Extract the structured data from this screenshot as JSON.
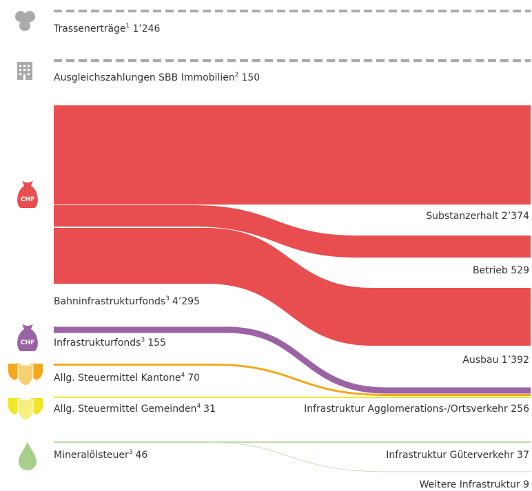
{
  "sources": [
    {
      "name": "Trassenerträge",
      "note": "1",
      "value": "1’246"
    },
    {
      "name": "Ausgleichszahlungen SBB Immobilien",
      "note": "2",
      "value": "150"
    },
    {
      "name": "Bahninfrastrukturfonds",
      "note": "3",
      "value": "4’295"
    },
    {
      "name": "Infrastrukturfonds",
      "note": "3",
      "value": "155"
    },
    {
      "name": "Allg. Steuermittel Kantone",
      "note": "4",
      "value": "70"
    },
    {
      "name": "Allg. Steuermittel Gemeinden",
      "note": "4",
      "value": "31"
    },
    {
      "name": "Mineralölsteuer",
      "note": "3",
      "value": "46"
    }
  ],
  "targets": [
    {
      "name": "Substanzerhalt",
      "value": "2’374"
    },
    {
      "name": "Betrieb",
      "value": "529"
    },
    {
      "name": "Ausbau",
      "value": "1’392"
    },
    {
      "name": "Infrastruktur Agglomerations-/Ortsverkehr",
      "value": "256"
    },
    {
      "name": "Infrastruktur Güterverkehr",
      "value": "37"
    },
    {
      "name": "Weitere Infrastruktur",
      "value": "9"
    }
  ],
  "icons": {
    "currency": "CHF"
  }
}
